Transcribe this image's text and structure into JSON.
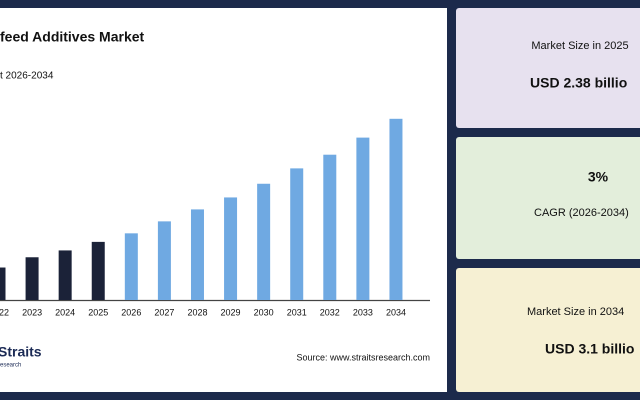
{
  "chart_data": {
    "type": "bar",
    "title": "feed Additives Market",
    "subtitle": "t 2026-2034",
    "categories": [
      "22",
      "2023",
      "2024",
      "2025",
      "2026",
      "2027",
      "2028",
      "2029",
      "2030",
      "2031",
      "2032",
      "2033",
      "2034"
    ],
    "values": [
      2.23,
      2.29,
      2.33,
      2.38,
      2.43,
      2.5,
      2.57,
      2.64,
      2.72,
      2.81,
      2.89,
      2.99,
      3.1
    ],
    "colors": [
      "#1b2238",
      "#1b2238",
      "#1b2238",
      "#1b2238",
      "#6fa9e2",
      "#6fa9e2",
      "#6fa9e2",
      "#6fa9e2",
      "#6fa9e2",
      "#6fa9e2",
      "#6fa9e2",
      "#6fa9e2",
      "#6fa9e2"
    ],
    "ylim": [
      2.04,
      3.21
    ],
    "source": "Source: www.straitsresearch.com",
    "logo": "Straits",
    "logo_sub": "research"
  },
  "cards": [
    {
      "label": "Market Size in 2025",
      "value": "USD 2.38 billio",
      "color": "#e7e1ef"
    },
    {
      "value": "3%",
      "label": "CAGR (2026-2034)",
      "color": "#e3eedb"
    },
    {
      "label": "Market Size in 2034",
      "value": "USD 3.1 billio",
      "color": "#f6f0d3"
    }
  ]
}
